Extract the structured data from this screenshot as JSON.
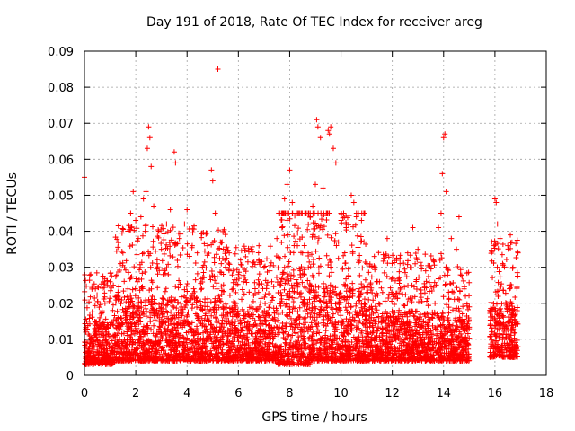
{
  "chart_data": {
    "type": "scatter",
    "title": "Day 191 of 2018, Rate Of TEC Index for receiver areg",
    "xlabel": "GPS time / hours",
    "ylabel": "ROTI / TECUs",
    "xlim": [
      0,
      18
    ],
    "ylim": [
      0,
      0.09
    ],
    "xticks": [
      "0",
      "2",
      "4",
      "6",
      "8",
      "10",
      "12",
      "14",
      "16",
      "18"
    ],
    "yticks": [
      "0",
      "0.01",
      "0.02",
      "0.03",
      "0.04",
      "0.05",
      "0.06",
      "0.07",
      "0.08",
      "0.09"
    ],
    "grid": true,
    "marker": "+",
    "color": "#ff0000",
    "series": [
      {
        "name": "ROTI",
        "points": [
          [
            0.0,
            0.055
          ],
          [
            0.05,
            0.012
          ],
          [
            0.1,
            0.009
          ],
          [
            0.2,
            0.011
          ],
          [
            0.3,
            0.008
          ],
          [
            0.4,
            0.013
          ],
          [
            0.5,
            0.01
          ],
          [
            0.6,
            0.016
          ],
          [
            0.7,
            0.012
          ],
          [
            0.8,
            0.02
          ],
          [
            0.9,
            0.025
          ],
          [
            1.0,
            0.026
          ],
          [
            1.1,
            0.018
          ],
          [
            1.3,
            0.022
          ],
          [
            1.4,
            0.031
          ],
          [
            1.5,
            0.034
          ],
          [
            1.7,
            0.04
          ],
          [
            1.8,
            0.045
          ],
          [
            1.9,
            0.051
          ],
          [
            2.0,
            0.043
          ],
          [
            2.1,
            0.038
          ],
          [
            2.2,
            0.044
          ],
          [
            2.3,
            0.049
          ],
          [
            2.4,
            0.051
          ],
          [
            2.45,
            0.063
          ],
          [
            2.5,
            0.069
          ],
          [
            2.55,
            0.066
          ],
          [
            2.6,
            0.058
          ],
          [
            2.7,
            0.047
          ],
          [
            2.9,
            0.04
          ],
          [
            3.0,
            0.035
          ],
          [
            3.2,
            0.042
          ],
          [
            3.35,
            0.046
          ],
          [
            3.5,
            0.062
          ],
          [
            3.55,
            0.059
          ],
          [
            3.7,
            0.038
          ],
          [
            3.9,
            0.042
          ],
          [
            4.0,
            0.046
          ],
          [
            4.2,
            0.036
          ],
          [
            4.4,
            0.034
          ],
          [
            4.6,
            0.03
          ],
          [
            4.8,
            0.036
          ],
          [
            4.95,
            0.057
          ],
          [
            5.0,
            0.054
          ],
          [
            5.1,
            0.045
          ],
          [
            5.2,
            0.085
          ],
          [
            5.3,
            0.037
          ],
          [
            5.5,
            0.03
          ],
          [
            5.8,
            0.024
          ],
          [
            6.0,
            0.028
          ],
          [
            6.2,
            0.026
          ],
          [
            6.5,
            0.035
          ],
          [
            6.8,
            0.032
          ],
          [
            7.0,
            0.03
          ],
          [
            7.3,
            0.026
          ],
          [
            7.5,
            0.038
          ],
          [
            7.7,
            0.041
          ],
          [
            7.8,
            0.049
          ],
          [
            7.9,
            0.053
          ],
          [
            8.0,
            0.057
          ],
          [
            8.1,
            0.048
          ],
          [
            8.3,
            0.036
          ],
          [
            8.5,
            0.034
          ],
          [
            8.8,
            0.044
          ],
          [
            8.9,
            0.047
          ],
          [
            9.0,
            0.053
          ],
          [
            9.05,
            0.071
          ],
          [
            9.1,
            0.069
          ],
          [
            9.2,
            0.066
          ],
          [
            9.3,
            0.052
          ],
          [
            9.5,
            0.068
          ],
          [
            9.55,
            0.067
          ],
          [
            9.6,
            0.069
          ],
          [
            9.7,
            0.063
          ],
          [
            9.8,
            0.059
          ],
          [
            9.9,
            0.037
          ],
          [
            10.0,
            0.043
          ],
          [
            10.2,
            0.041
          ],
          [
            10.4,
            0.05
          ],
          [
            10.5,
            0.048
          ],
          [
            10.6,
            0.044
          ],
          [
            10.8,
            0.043
          ],
          [
            11.0,
            0.031
          ],
          [
            11.3,
            0.033
          ],
          [
            11.5,
            0.026
          ],
          [
            11.8,
            0.038
          ],
          [
            12.0,
            0.027
          ],
          [
            12.3,
            0.031
          ],
          [
            12.6,
            0.034
          ],
          [
            12.8,
            0.041
          ],
          [
            13.0,
            0.035
          ],
          [
            13.3,
            0.029
          ],
          [
            13.6,
            0.032
          ],
          [
            13.8,
            0.041
          ],
          [
            13.9,
            0.045
          ],
          [
            13.95,
            0.056
          ],
          [
            14.0,
            0.066
          ],
          [
            14.05,
            0.067
          ],
          [
            14.1,
            0.051
          ],
          [
            14.3,
            0.038
          ],
          [
            14.5,
            0.035
          ],
          [
            14.6,
            0.044
          ],
          [
            14.8,
            0.024
          ],
          [
            15.0,
            0.019
          ],
          [
            15.8,
            0.018
          ],
          [
            16.0,
            0.049
          ],
          [
            16.05,
            0.048
          ],
          [
            16.1,
            0.042
          ],
          [
            16.2,
            0.038
          ],
          [
            16.3,
            0.031
          ],
          [
            16.5,
            0.036
          ],
          [
            16.6,
            0.039
          ],
          [
            16.7,
            0.03
          ],
          [
            16.9,
            0.034
          ]
        ],
        "dense_bands": [
          {
            "x0": 0.0,
            "x1": 1.2,
            "low": 0.003,
            "high": 0.015
          },
          {
            "x0": 1.2,
            "x1": 5.5,
            "low": 0.004,
            "high": 0.022
          },
          {
            "x0": 5.5,
            "x1": 7.5,
            "low": 0.004,
            "high": 0.019
          },
          {
            "x0": 7.5,
            "x1": 8.8,
            "low": 0.003,
            "high": 0.03
          },
          {
            "x0": 8.8,
            "x1": 11.0,
            "low": 0.004,
            "high": 0.025
          },
          {
            "x0": 11.0,
            "x1": 14.0,
            "low": 0.004,
            "high": 0.018
          },
          {
            "x0": 14.0,
            "x1": 15.0,
            "low": 0.004,
            "high": 0.016
          },
          {
            "x0": 15.8,
            "x1": 16.9,
            "low": 0.005,
            "high": 0.02
          }
        ]
      }
    ]
  }
}
